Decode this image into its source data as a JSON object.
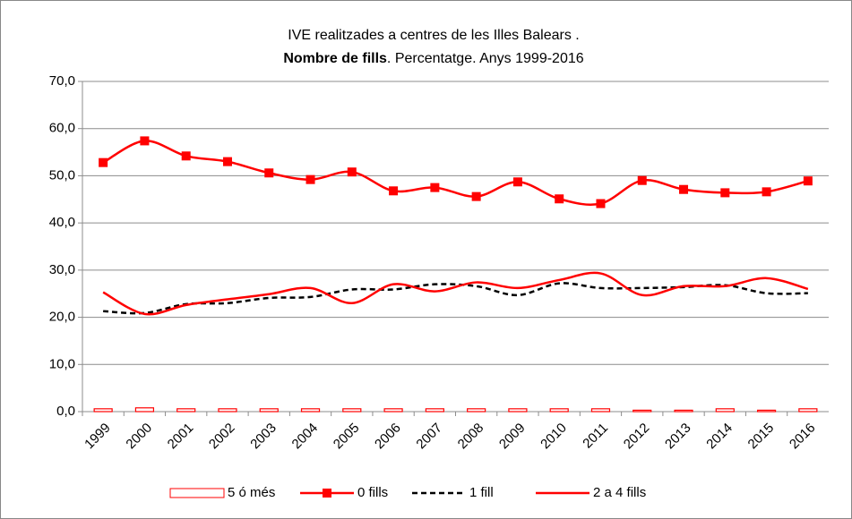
{
  "chart_data": {
    "type": "line",
    "title_line1": "IVE realitzades a centres de les Illes Balears .",
    "title_line2_bold": "Nombre de fills",
    "title_line2_rest": ". Percentatge. Anys 1999-2016",
    "categories": [
      "1999",
      "2000",
      "2001",
      "2002",
      "2003",
      "2004",
      "2005",
      "2006",
      "2007",
      "2008",
      "2009",
      "2010",
      "2011",
      "2012",
      "2013",
      "2014",
      "2015",
      "2016"
    ],
    "ylim": [
      0,
      70
    ],
    "yticks": [
      {
        "value": 0,
        "label": "0,0"
      },
      {
        "value": 10,
        "label": "10,0"
      },
      {
        "value": 20,
        "label": "20,0"
      },
      {
        "value": 30,
        "label": "30,0"
      },
      {
        "value": 40,
        "label": "40,0"
      },
      {
        "value": 50,
        "label": "50,0"
      },
      {
        "value": 60,
        "label": "60,0"
      },
      {
        "value": 70,
        "label": "70,0"
      }
    ],
    "grid": true,
    "series": [
      {
        "name": "5 ó més",
        "type": "bar",
        "color": "#ff0000",
        "values": [
          0.6,
          0.8,
          0.6,
          0.6,
          0.6,
          0.6,
          0.6,
          0.6,
          0.6,
          0.6,
          0.6,
          0.6,
          0.6,
          0.3,
          0.3,
          0.6,
          0.3,
          0.6
        ]
      },
      {
        "name": "0 fills",
        "type": "line",
        "color": "#ff0000",
        "marker": "square",
        "values": [
          52.8,
          57.4,
          54.2,
          53.0,
          50.6,
          49.2,
          50.8,
          46.8,
          47.5,
          45.6,
          48.7,
          45.1,
          44.1,
          49.0,
          47.1,
          46.4,
          46.6,
          48.9
        ]
      },
      {
        "name": "1 fill",
        "type": "line",
        "color": "#000000",
        "dashed": true,
        "values": [
          21.3,
          20.9,
          22.8,
          23.0,
          24.1,
          24.3,
          25.9,
          25.9,
          27.0,
          26.6,
          24.7,
          27.2,
          26.2,
          26.2,
          26.4,
          26.8,
          25.1,
          25.1
        ]
      },
      {
        "name": "2 a 4 fills",
        "type": "line",
        "color": "#ff0000",
        "values": [
          25.3,
          20.7,
          22.6,
          23.8,
          24.9,
          26.2,
          23.0,
          27.0,
          25.5,
          27.4,
          26.2,
          27.9,
          29.3,
          24.7,
          26.6,
          26.6,
          28.3,
          26.0
        ]
      }
    ]
  }
}
